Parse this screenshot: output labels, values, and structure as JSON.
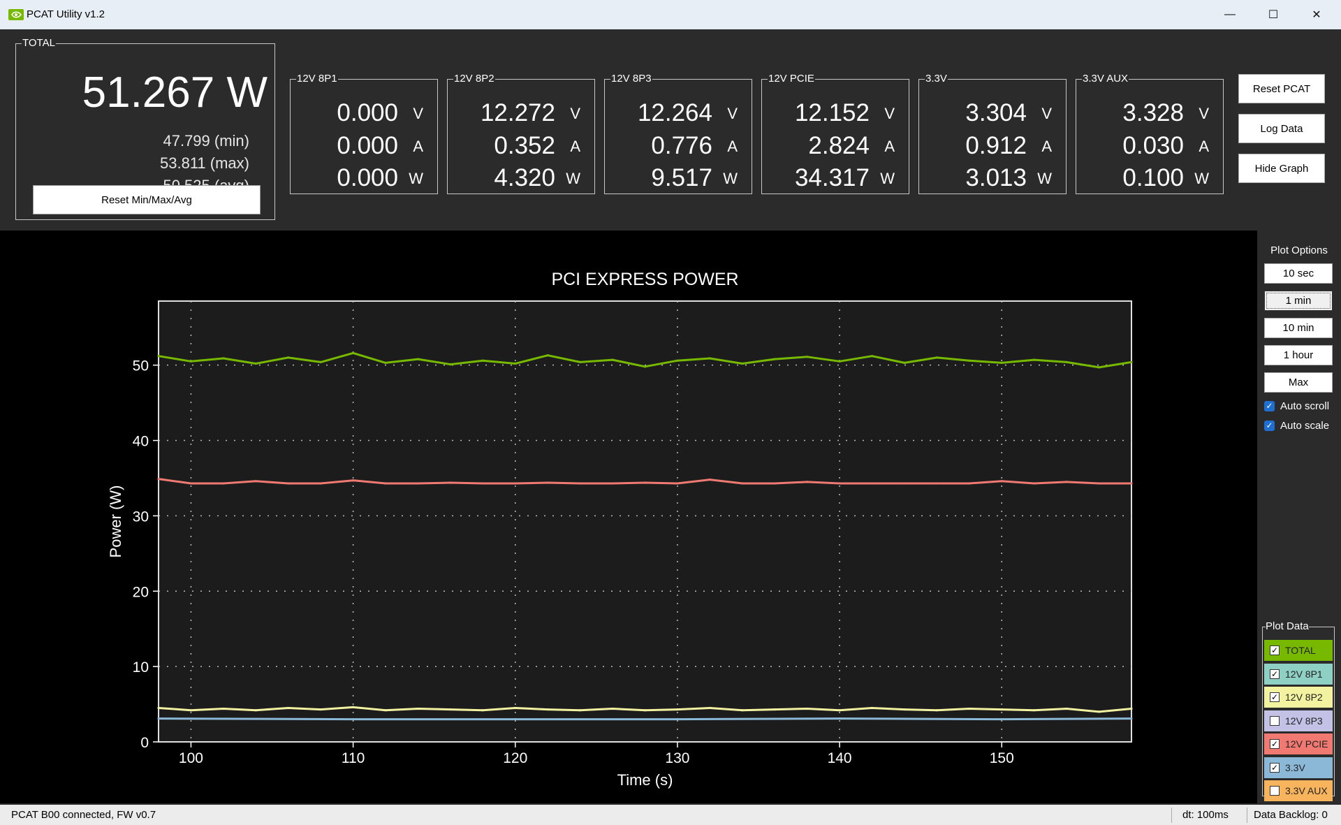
{
  "window": {
    "title": "PCAT Utility v1.2",
    "minimize": "—",
    "maximize": "☐",
    "close": "✕"
  },
  "total": {
    "label": "TOTAL",
    "value": "51.267 W",
    "min": "47.799 (min)",
    "max": "53.811 (max)",
    "avg": "50.525 (avg)",
    "reset_label": "Reset Min/Max/Avg"
  },
  "rails": [
    {
      "label": "12V 8P1",
      "v": "0.000",
      "a": "0.000",
      "w": "0.000"
    },
    {
      "label": "12V 8P2",
      "v": "12.272",
      "a": "0.352",
      "w": "4.320"
    },
    {
      "label": "12V 8P3",
      "v": "12.264",
      "a": "0.776",
      "w": "9.517"
    },
    {
      "label": "12V PCIE",
      "v": "12.152",
      "a": "2.824",
      "w": "34.317"
    },
    {
      "label": "3.3V",
      "v": "3.304",
      "a": "0.912",
      "w": "3.013"
    },
    {
      "label": "3.3V AUX",
      "v": "3.328",
      "a": "0.030",
      "w": "0.100"
    }
  ],
  "units": {
    "v": "V",
    "a": "A",
    "w": "W"
  },
  "buttons": {
    "reset_pcat": "Reset PCAT",
    "log_data": "Log Data",
    "hide_graph": "Hide Graph"
  },
  "plot_options": {
    "title": "Plot Options",
    "ranges": [
      "10 sec",
      "1 min",
      "10 min",
      "1 hour",
      "Max"
    ],
    "selected_range": "1 min",
    "auto_scroll": "Auto scroll",
    "auto_scale": "Auto scale"
  },
  "plot_data": {
    "title": "Plot Data",
    "items": [
      {
        "label": "TOTAL",
        "checked": true,
        "color": "#76b900"
      },
      {
        "label": "12V 8P1",
        "checked": true,
        "color": "#8fd0c4"
      },
      {
        "label": "12V 8P2",
        "checked": true,
        "color": "#f2f2a0"
      },
      {
        "label": "12V 8P3",
        "checked": false,
        "color": "#c3c1e6"
      },
      {
        "label": "12V PCIE",
        "checked": true,
        "color": "#f07a72"
      },
      {
        "label": "3.3V",
        "checked": true,
        "color": "#8cb8d8"
      },
      {
        "label": "3.3V AUX",
        "checked": false,
        "color": "#f8b45c"
      }
    ]
  },
  "status": {
    "connection": "PCAT B00 connected, FW v0.7",
    "dt": "dt: 100ms",
    "backlog": "Data Backlog: 0"
  },
  "chart_data": {
    "type": "line",
    "title": "PCI EXPRESS POWER",
    "xlabel": "Time (s)",
    "ylabel": "Power (W)",
    "xlim": [
      98,
      158
    ],
    "ylim": [
      0,
      58.5
    ],
    "xticks": [
      100,
      110,
      120,
      130,
      140,
      150
    ],
    "yticks": [
      0,
      10,
      20,
      30,
      40,
      50
    ],
    "grid": true,
    "background": "#1c1c1c",
    "series": [
      {
        "name": "TOTAL",
        "color": "#76b900",
        "x": [
          98,
          100,
          102,
          104,
          106,
          108,
          110,
          112,
          114,
          116,
          118,
          120,
          122,
          124,
          126,
          128,
          130,
          132,
          134,
          136,
          138,
          140,
          142,
          144,
          146,
          148,
          150,
          152,
          154,
          156,
          158
        ],
        "values": [
          51.2,
          50.5,
          50.9,
          50.2,
          51.0,
          50.4,
          51.6,
          50.3,
          50.8,
          50.1,
          50.6,
          50.2,
          51.3,
          50.4,
          50.7,
          49.8,
          50.6,
          50.9,
          50.2,
          50.8,
          51.1,
          50.5,
          51.2,
          50.3,
          51.0,
          50.6,
          50.3,
          50.7,
          50.4,
          49.7,
          50.4
        ]
      },
      {
        "name": "12V PCIE",
        "color": "#f07a72",
        "x": [
          98,
          100,
          102,
          104,
          106,
          108,
          110,
          112,
          114,
          116,
          118,
          120,
          122,
          124,
          126,
          128,
          130,
          132,
          134,
          136,
          138,
          140,
          142,
          144,
          146,
          148,
          150,
          152,
          154,
          156,
          158
        ],
        "values": [
          34.9,
          34.3,
          34.3,
          34.6,
          34.3,
          34.3,
          34.7,
          34.3,
          34.3,
          34.4,
          34.3,
          34.3,
          34.4,
          34.3,
          34.3,
          34.4,
          34.3,
          34.8,
          34.3,
          34.3,
          34.5,
          34.3,
          34.3,
          34.3,
          34.3,
          34.3,
          34.6,
          34.3,
          34.5,
          34.3,
          34.3
        ]
      },
      {
        "name": "12V 8P2",
        "color": "#f2f2a0",
        "x": [
          98,
          100,
          102,
          104,
          106,
          108,
          110,
          112,
          114,
          116,
          118,
          120,
          122,
          124,
          126,
          128,
          130,
          132,
          134,
          136,
          138,
          140,
          142,
          144,
          146,
          148,
          150,
          152,
          154,
          156,
          158
        ],
        "values": [
          4.5,
          4.2,
          4.4,
          4.2,
          4.5,
          4.3,
          4.6,
          4.2,
          4.4,
          4.3,
          4.2,
          4.5,
          4.3,
          4.2,
          4.4,
          4.2,
          4.3,
          4.5,
          4.2,
          4.3,
          4.4,
          4.2,
          4.5,
          4.3,
          4.2,
          4.4,
          4.3,
          4.2,
          4.4,
          4.0,
          4.4
        ]
      },
      {
        "name": "3.3V",
        "color": "#8cb8d8",
        "x": [
          98,
          110,
          120,
          130,
          140,
          150,
          158
        ],
        "values": [
          3.1,
          3.0,
          3.0,
          3.0,
          3.1,
          3.0,
          3.1
        ]
      }
    ]
  }
}
